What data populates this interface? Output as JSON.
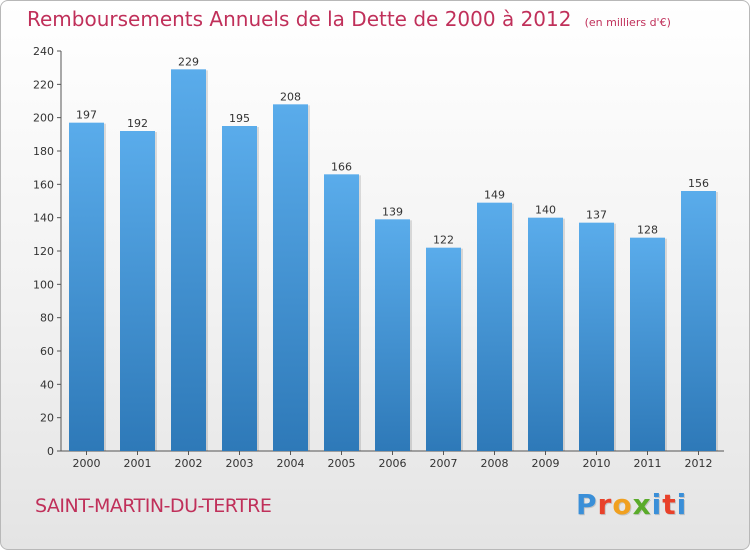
{
  "title": "Remboursements Annuels de la Dette de 2000 à 2012",
  "subtitle": "(en milliers d'€)",
  "commune": "SAINT-MARTIN-DU-TERTRE",
  "brand": {
    "letters": [
      "P",
      "r",
      "o",
      "x",
      "i",
      "t",
      "i"
    ],
    "colors": [
      "#3a8fd8",
      "#e8412a",
      "#f0a020",
      "#5aab2a",
      "#3a8fd8",
      "#e8412a",
      "#3a8fd8"
    ]
  },
  "colors": {
    "accent": "#c0305a",
    "bar_top": "#5aaceb",
    "bar_bottom": "#2e79b8"
  },
  "chart_data": {
    "type": "bar",
    "categories": [
      "2000",
      "2001",
      "2002",
      "2003",
      "2004",
      "2005",
      "2006",
      "2007",
      "2008",
      "2009",
      "2010",
      "2011",
      "2012"
    ],
    "values": [
      197,
      192,
      229,
      195,
      208,
      166,
      139,
      122,
      149,
      140,
      137,
      128,
      156
    ],
    "ylim": [
      0,
      240
    ],
    "yticks": [
      0,
      20,
      40,
      60,
      80,
      100,
      120,
      140,
      160,
      180,
      200,
      220,
      240
    ],
    "grid": false,
    "legend": "none"
  }
}
